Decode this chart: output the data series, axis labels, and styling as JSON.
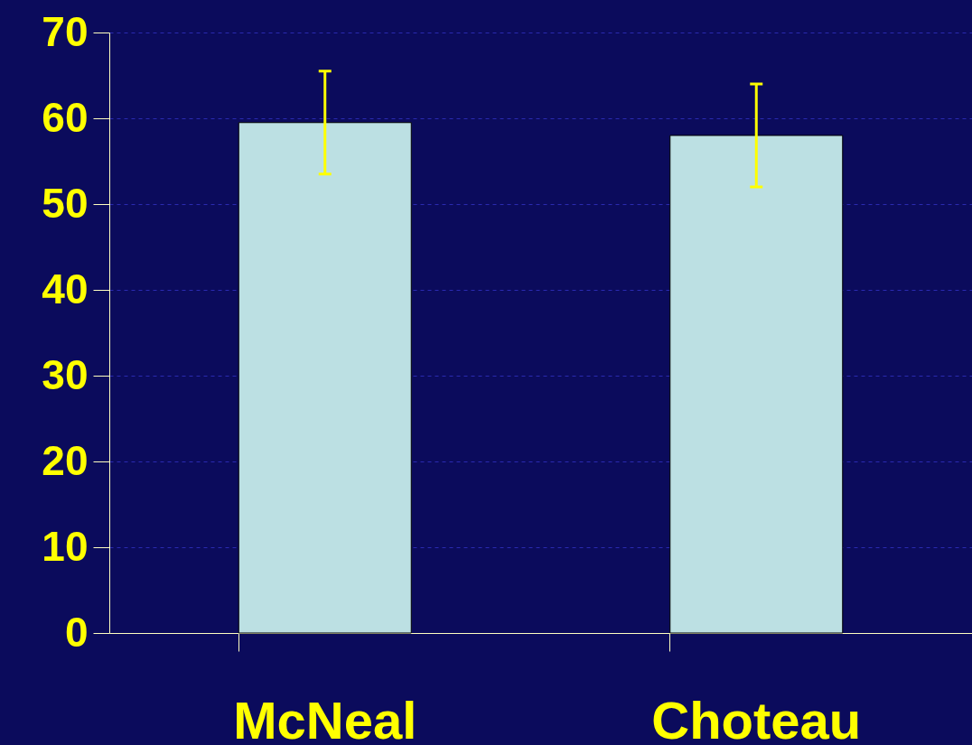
{
  "chart_data": {
    "type": "bar",
    "categories": [
      "McNeal",
      "Choteau"
    ],
    "values": [
      59.5,
      58
    ],
    "errors": [
      6,
      6
    ],
    "color": "#bce0e3",
    "ylim": [
      0,
      70
    ],
    "yticks": [
      0,
      10,
      20,
      30,
      40,
      50,
      60,
      70
    ],
    "grid": "y"
  }
}
